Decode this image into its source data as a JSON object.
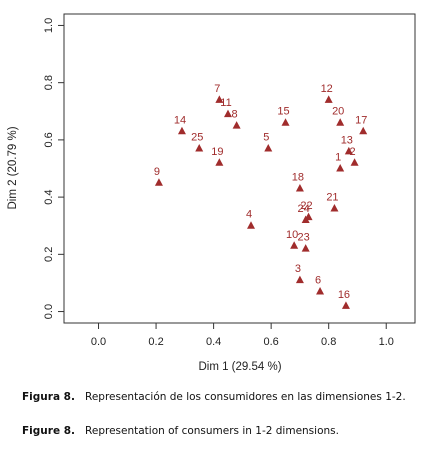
{
  "chart_data": {
    "type": "scatter",
    "title": "",
    "xlabel": "Dim 1 (29.54 %)",
    "ylabel": "Dim 2 (20.79 %)",
    "xlim": [
      -0.12,
      1.1
    ],
    "ylim": [
      -0.04,
      1.04
    ],
    "xticks": [
      "0.0",
      "0.2",
      "0.4",
      "0.6",
      "0.8",
      "1.0"
    ],
    "yticks": [
      "0.0",
      "0.2",
      "0.4",
      "0.6",
      "0.8",
      "1.0"
    ],
    "grid": false,
    "marker": "triangle",
    "color": "#a02c2c",
    "points": [
      {
        "label": "1",
        "x": 0.84,
        "y": 0.5
      },
      {
        "label": "2",
        "x": 0.89,
        "y": 0.52
      },
      {
        "label": "3",
        "x": 0.7,
        "y": 0.11
      },
      {
        "label": "4",
        "x": 0.53,
        "y": 0.3
      },
      {
        "label": "5",
        "x": 0.59,
        "y": 0.57
      },
      {
        "label": "6",
        "x": 0.77,
        "y": 0.07
      },
      {
        "label": "7",
        "x": 0.42,
        "y": 0.74
      },
      {
        "label": "8",
        "x": 0.48,
        "y": 0.65
      },
      {
        "label": "9",
        "x": 0.21,
        "y": 0.45
      },
      {
        "label": "10",
        "x": 0.68,
        "y": 0.23
      },
      {
        "label": "11",
        "x": 0.45,
        "y": 0.69
      },
      {
        "label": "12",
        "x": 0.8,
        "y": 0.74
      },
      {
        "label": "13",
        "x": 0.87,
        "y": 0.56
      },
      {
        "label": "14",
        "x": 0.29,
        "y": 0.63
      },
      {
        "label": "15",
        "x": 0.65,
        "y": 0.66
      },
      {
        "label": "16",
        "x": 0.86,
        "y": 0.02
      },
      {
        "label": "17",
        "x": 0.92,
        "y": 0.63
      },
      {
        "label": "18",
        "x": 0.7,
        "y": 0.43
      },
      {
        "label": "19",
        "x": 0.42,
        "y": 0.52
      },
      {
        "label": "20",
        "x": 0.84,
        "y": 0.66
      },
      {
        "label": "21",
        "x": 0.82,
        "y": 0.36
      },
      {
        "label": "22",
        "x": 0.73,
        "y": 0.33
      },
      {
        "label": "23",
        "x": 0.72,
        "y": 0.22
      },
      {
        "label": "24",
        "x": 0.72,
        "y": 0.32
      },
      {
        "label": "25",
        "x": 0.35,
        "y": 0.57
      }
    ]
  },
  "captions": {
    "es_label": "Figura 8.",
    "es_text": "Representación de los consumidores en las dimensiones 1-2.",
    "en_label": "Figure 8.",
    "en_text": "Representation of consumers in 1-2 dimensions."
  }
}
